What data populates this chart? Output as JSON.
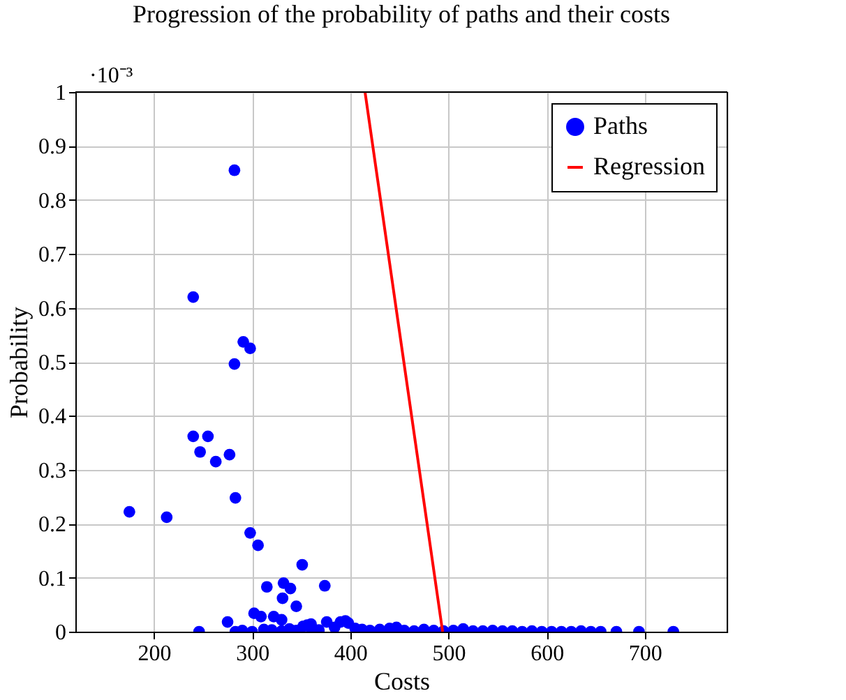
{
  "chart_data": {
    "type": "scatter",
    "title": "Progression of the probability of paths and their costs",
    "xlabel": "Costs",
    "ylabel": "Probability",
    "annotations": [
      "·10⁻³"
    ],
    "xlim": [
      120,
      784
    ],
    "ylim": [
      0,
      1
    ],
    "xticks": [
      200,
      300,
      400,
      500,
      600,
      700
    ],
    "yticks": [
      0,
      0.1,
      0.2,
      0.3,
      0.4,
      0.5,
      0.6,
      0.7,
      0.8,
      0.9,
      1
    ],
    "grid": true,
    "legend": "top right",
    "series": [
      {
        "name": "Paths",
        "marker": "circle",
        "color": "#0000ff",
        "x": [
          175,
          213,
          240,
          240,
          255,
          247,
          263,
          277,
          283,
          282,
          282,
          291,
          298,
          298,
          306,
          351,
          315,
          374,
          332,
          339,
          331,
          345,
          302,
          309,
          275,
          246,
          283,
          290,
          300,
          312,
          320,
          330,
          338,
          345,
          352,
          360,
          368,
          376,
          384,
          390,
          398,
          405,
          412,
          420,
          430,
          440,
          447,
          455,
          465,
          475,
          485,
          495,
          505,
          515,
          525,
          535,
          545,
          555,
          565,
          575,
          585,
          595,
          605,
          615,
          625,
          635,
          645,
          655,
          671,
          694,
          729,
          330,
          360,
          395,
          322,
          356
        ],
        "values": [
          0.222,
          0.212,
          0.62,
          0.362,
          0.362,
          0.333,
          0.315,
          0.328,
          0.248,
          0.855,
          0.496,
          0.537,
          0.525,
          0.183,
          0.16,
          0.124,
          0.083,
          0.085,
          0.09,
          0.08,
          0.062,
          0.047,
          0.034,
          0.028,
          0.018,
          0,
          0,
          0.002,
          0,
          0.004,
          0.003,
          0.001,
          0.005,
          0.002,
          0.01,
          0.006,
          0.003,
          0.018,
          0.008,
          0.018,
          0.016,
          0.006,
          0.004,
          0.002,
          0.004,
          0.006,
          0.008,
          0.002,
          0.001,
          0.004,
          0.002,
          0.001,
          0.002,
          0.005,
          0.001,
          0.001,
          0.002,
          0.001,
          0.001,
          0,
          0.001,
          0,
          0,
          0,
          0,
          0.001,
          0,
          0,
          0,
          0,
          0,
          0.022,
          0.014,
          0.02,
          0.028,
          0.012
        ]
      },
      {
        "name": "Regression",
        "type": "line",
        "color": "#ff0000",
        "x": [
          415,
          494
        ],
        "values": [
          1,
          0
        ]
      }
    ]
  }
}
